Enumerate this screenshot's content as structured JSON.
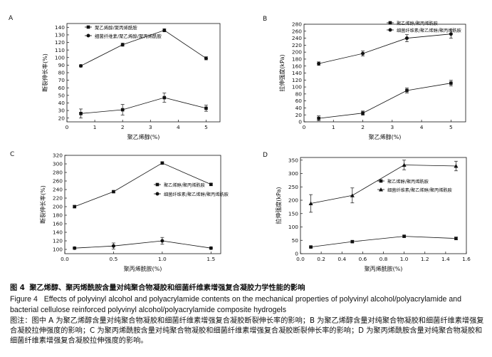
{
  "figure": {
    "caption_cn": {
      "number": "图 4",
      "title": "聚乙烯醇、聚丙烯酰胺含量对纯聚合物凝胶和细菌纤维素增强复合凝胶力学性能的影响"
    },
    "caption_en": {
      "number": "Figure 4",
      "line1": "Effects of polyvinyl alcohol and polyacrylamide contents on the mechanical properties of polyvinyl alcohol/polyacrylamide and",
      "line2": "bacterial cellulose reinforced polyvinyl alcohol/polyacrylamide composite hydrogels"
    },
    "note": "图注：图中 A 为聚乙烯醇含量对纯聚合物凝胶和细菌纤维素增强复合凝胶断裂伸长率的影响；B 为聚乙烯醇含量对纯聚合物凝胶和细菌纤维素增强复合凝胶拉伸强度的影响；C 为聚丙烯酰胺含量对纯聚合物凝胶和细菌纤维素增强复合凝胶断裂伸长率的影响；D 为聚丙烯酰胺含量对纯聚合物凝胶和细菌纤维素增强复合凝胶拉伸强度的影响。"
  },
  "colors": {
    "ink": "#111111",
    "background": "#ffffff"
  },
  "chart_data": [
    {
      "panel": "A",
      "type": "line",
      "xlabel": "聚乙烯醇(%)",
      "ylabel": "断裂伸长率(%)",
      "xlim": [
        0,
        5.5
      ],
      "ylim": [
        15,
        145
      ],
      "xticks": [
        0,
        1,
        2,
        3,
        4,
        5
      ],
      "yticks": [
        20,
        30,
        40,
        50,
        60,
        70,
        80,
        90,
        100,
        110,
        120,
        130,
        140
      ],
      "legend_position": "top-left",
      "series": [
        {
          "name": "聚乙烯醇/聚丙烯酰胺",
          "marker": "square",
          "x": [
            0.5,
            2,
            3.5,
            5
          ],
          "y": [
            26,
            31,
            47,
            33
          ],
          "err": [
            6,
            7,
            6,
            4
          ]
        },
        {
          "name": "细菌纤维素/聚乙烯醇/聚丙烯酰胺",
          "marker": "circle",
          "x": [
            0.5,
            2,
            3.5,
            5
          ],
          "y": [
            89,
            117,
            136,
            99
          ],
          "err": [
            1.5,
            2,
            2,
            2
          ]
        }
      ]
    },
    {
      "panel": "B",
      "type": "line",
      "xlabel": "聚乙烯醇(%)",
      "ylabel": "拉伸强度(kPa)",
      "xlim": [
        0,
        5.5
      ],
      "ylim": [
        0,
        280
      ],
      "xticks": [
        0,
        1,
        2,
        3,
        4,
        5
      ],
      "yticks": [
        0,
        20,
        40,
        60,
        80,
        100,
        120,
        140,
        160,
        180,
        200,
        220,
        240,
        260,
        280
      ],
      "legend_position": "top-right",
      "series": [
        {
          "name": "聚乙烯醇/聚丙烯酰胺",
          "marker": "square",
          "x": [
            0.5,
            2,
            3.5,
            5
          ],
          "y": [
            10,
            25,
            90,
            111
          ],
          "err": [
            7,
            6,
            7,
            8
          ]
        },
        {
          "name": "细菌纤维素/聚乙烯醇/聚丙烯酰胺",
          "marker": "circle",
          "x": [
            0.5,
            2,
            3.5,
            5
          ],
          "y": [
            167,
            196,
            240,
            252
          ],
          "err": [
            5,
            7,
            10,
            12
          ]
        }
      ]
    },
    {
      "panel": "C",
      "type": "line",
      "xlabel": "聚丙烯酰胺(%)",
      "ylabel": "断裂伸长率(%)",
      "xlim": [
        0,
        1.6
      ],
      "ylim": [
        90,
        320
      ],
      "xticks": [
        0.0,
        0.5,
        1.0,
        1.5
      ],
      "yticks": [
        100,
        120,
        140,
        160,
        180,
        200,
        220,
        240,
        260,
        280,
        300,
        320
      ],
      "legend_position": "top-right",
      "series": [
        {
          "name": "聚乙烯醇/聚丙烯酰胺",
          "marker": "square",
          "x": [
            0.1,
            0.5,
            1.0,
            1.5
          ],
          "y": [
            200,
            235,
            302,
            252
          ],
          "err": [
            3,
            2,
            2,
            2
          ]
        },
        {
          "name": "细菌纤维素/聚乙烯醇/聚丙烯酰胺",
          "marker": "circle",
          "x": [
            0.1,
            0.5,
            1.0,
            1.5
          ],
          "y": [
            103,
            108,
            120,
            103
          ],
          "err": [
            3,
            7,
            8,
            3
          ]
        }
      ]
    },
    {
      "panel": "D",
      "type": "line",
      "xlabel": "聚丙烯酰胺(%)",
      "ylabel": "拉伸强度(kPa)",
      "xlim": [
        0,
        1.6
      ],
      "ylim": [
        0,
        360
      ],
      "xticks": [
        0.0,
        0.2,
        0.4,
        0.6,
        0.8,
        1.0,
        1.2,
        1.4,
        1.6
      ],
      "yticks": [
        0,
        50,
        100,
        150,
        200,
        250,
        300,
        350
      ],
      "legend_position": "right",
      "series": [
        {
          "name": "聚乙烯醇/聚丙烯酰胺",
          "marker": "square",
          "x": [
            0.1,
            0.5,
            1.0,
            1.5
          ],
          "y": [
            25,
            45,
            65,
            57
          ],
          "err": [
            2,
            4,
            4,
            5
          ]
        },
        {
          "name": "细菌纤维素/聚乙烯醇/聚丙烯酰胺",
          "marker": "triangle",
          "x": [
            0.1,
            0.5,
            1.0,
            1.5
          ],
          "y": [
            188,
            218,
            332,
            328
          ],
          "err": [
            33,
            28,
            18,
            18
          ]
        }
      ]
    }
  ]
}
